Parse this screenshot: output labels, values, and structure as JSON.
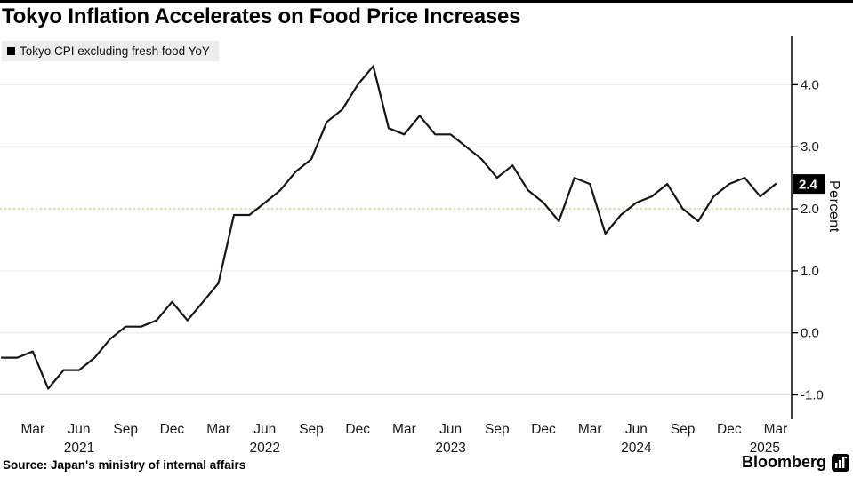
{
  "page": {
    "title": "Tokyo Inflation Accelerates on Food Price Increases",
    "source": "Source: Japan's ministry of internal affairs",
    "brand": "Bloomberg"
  },
  "legend": {
    "label": "Tokyo CPI excluding fresh food YoY",
    "marker_color": "#000000"
  },
  "chart_data": {
    "type": "line",
    "title": "Tokyo Inflation Accelerates on Food Price Increases",
    "ylabel": "Percent",
    "ylim": [
      -1.15,
      4.65
    ],
    "line_color": "#161616",
    "grid_color": "#e8e8e8",
    "axis_color": "#000000",
    "reference_line": {
      "value": 2.0,
      "color": "#ddca6f"
    },
    "last_value_label": "2.4",
    "yticks": [
      {
        "value": 4.0,
        "label": "4.0"
      },
      {
        "value": 3.0,
        "label": "3.0"
      },
      {
        "value": 2.0,
        "label": "2.0"
      },
      {
        "value": 1.0,
        "label": "1.0"
      },
      {
        "value": 0.0,
        "label": "0.0"
      },
      {
        "value": -1.0,
        "label": "-1.0"
      }
    ],
    "x_ticks": [
      {
        "index": 2,
        "label": "Mar"
      },
      {
        "index": 5,
        "label": "Jun"
      },
      {
        "index": 8,
        "label": "Sep"
      },
      {
        "index": 11,
        "label": "Dec"
      },
      {
        "index": 14,
        "label": "Mar"
      },
      {
        "index": 17,
        "label": "Jun"
      },
      {
        "index": 20,
        "label": "Sep"
      },
      {
        "index": 23,
        "label": "Dec"
      },
      {
        "index": 26,
        "label": "Mar"
      },
      {
        "index": 29,
        "label": "Jun"
      },
      {
        "index": 32,
        "label": "Sep"
      },
      {
        "index": 35,
        "label": "Dec"
      },
      {
        "index": 38,
        "label": "Mar"
      },
      {
        "index": 41,
        "label": "Jun"
      },
      {
        "index": 44,
        "label": "Sep"
      },
      {
        "index": 47,
        "label": "Dec"
      },
      {
        "index": 50,
        "label": "Mar"
      }
    ],
    "year_labels": [
      {
        "index": 5,
        "label": "2021"
      },
      {
        "index": 17,
        "label": "2022"
      },
      {
        "index": 29,
        "label": "2023"
      },
      {
        "index": 41,
        "label": "2024"
      },
      {
        "index": 49.3,
        "label": "2025"
      }
    ],
    "x": [
      "2021-01",
      "2021-02",
      "2021-03",
      "2021-04",
      "2021-05",
      "2021-06",
      "2021-07",
      "2021-08",
      "2021-09",
      "2021-10",
      "2021-11",
      "2021-12",
      "2022-01",
      "2022-02",
      "2022-03",
      "2022-04",
      "2022-05",
      "2022-06",
      "2022-07",
      "2022-08",
      "2022-09",
      "2022-10",
      "2022-11",
      "2022-12",
      "2023-01",
      "2023-02",
      "2023-03",
      "2023-04",
      "2023-05",
      "2023-06",
      "2023-07",
      "2023-08",
      "2023-09",
      "2023-10",
      "2023-11",
      "2023-12",
      "2024-01",
      "2024-02",
      "2024-03",
      "2024-04",
      "2024-05",
      "2024-06",
      "2024-07",
      "2024-08",
      "2024-09",
      "2024-10",
      "2024-11",
      "2024-12",
      "2025-01",
      "2025-02",
      "2025-03"
    ],
    "series": [
      {
        "name": "Tokyo CPI excluding fresh food YoY",
        "values": [
          -0.4,
          -0.4,
          -0.3,
          -0.9,
          -0.6,
          -0.6,
          -0.4,
          -0.1,
          0.1,
          0.1,
          0.2,
          0.5,
          0.2,
          0.5,
          0.8,
          1.9,
          1.9,
          2.1,
          2.3,
          2.6,
          2.8,
          3.4,
          3.6,
          4.0,
          4.3,
          3.3,
          3.2,
          3.5,
          3.2,
          3.2,
          3.0,
          2.8,
          2.5,
          2.7,
          2.3,
          2.1,
          1.8,
          2.5,
          2.4,
          1.6,
          1.9,
          2.1,
          2.2,
          2.4,
          2.0,
          1.8,
          2.2,
          2.4,
          2.5,
          2.2,
          2.4
        ]
      }
    ]
  }
}
